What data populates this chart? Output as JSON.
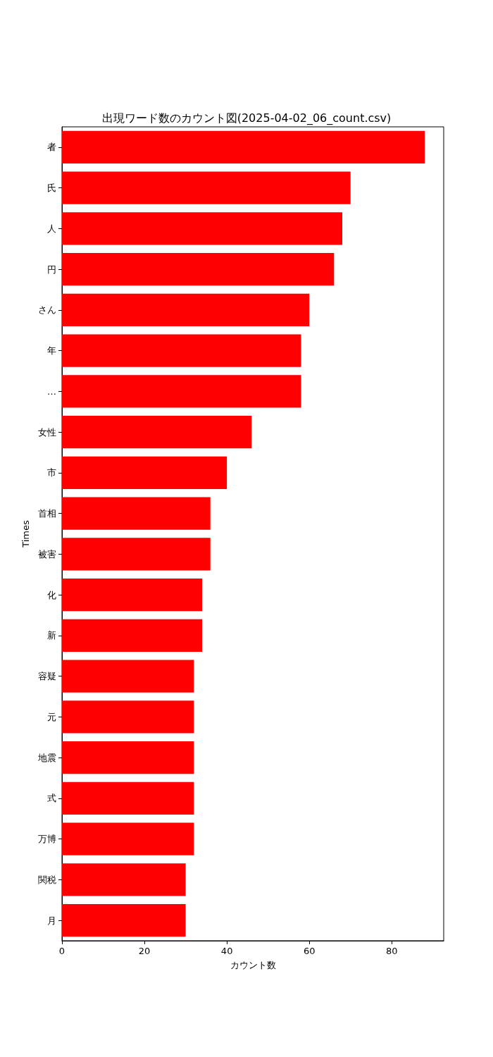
{
  "chart_data": {
    "type": "bar",
    "orientation": "horizontal",
    "title": "出現ワード数のカウント図(2025-04-02_06_count.csv)",
    "xlabel": "カウント数",
    "ylabel": "Times",
    "categories": [
      "者",
      "氏",
      "人",
      "円",
      "さん",
      "年",
      "…",
      "女性",
      "市",
      "首相",
      "被害",
      "化",
      "新",
      "容疑",
      "元",
      "地震",
      "式",
      "万博",
      "関税",
      "月"
    ],
    "values": [
      88,
      70,
      68,
      66,
      60,
      58,
      58,
      46,
      40,
      36,
      36,
      34,
      34,
      32,
      32,
      32,
      32,
      32,
      30,
      30
    ],
    "color": "#ff0000",
    "xlim": [
      0,
      92.6
    ],
    "xticks": [
      0,
      20,
      40,
      60,
      80
    ]
  }
}
